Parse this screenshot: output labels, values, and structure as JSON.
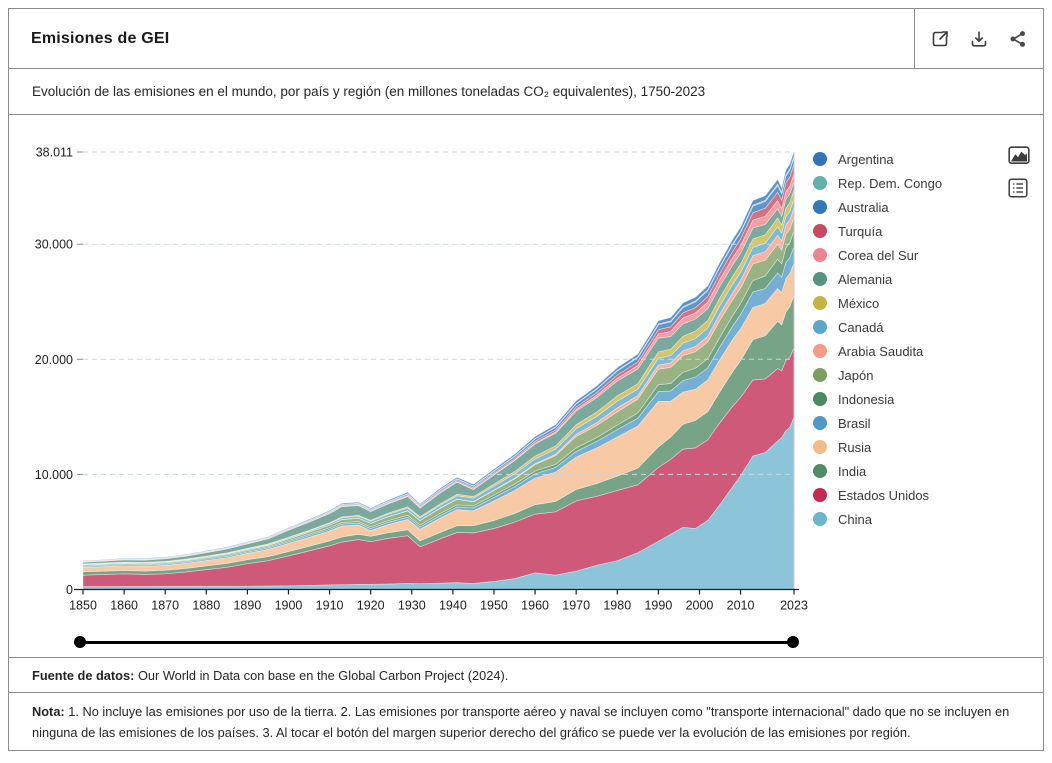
{
  "header": {
    "title": "Emisiones de GEI",
    "action_icons": [
      "external-link-icon",
      "download-icon",
      "share-icon"
    ]
  },
  "subtitle": "Evolución de las emisiones en el mundo, por país y región (en millones toneladas CO₂ equivalentes), 1750-2023",
  "controls": {
    "icons": [
      "area-chart-icon",
      "legend-list-icon"
    ]
  },
  "source": {
    "label": "Fuente de datos:",
    "text": " Our World in Data con base en the Global Carbon Project (2024)."
  },
  "note": {
    "label": "Nota:",
    "text": " 1. No incluye las emisiones por uso de la tierra. 2. Las emisiones por transporte aéreo y naval se incluyen como \"transporte internacional\" dado que no se incluyen en ninguna de las emisiones de los países. 3. Al tocar el botón del margen superior derecho del gráfico se puede ver la evolución de las emisiones por región."
  },
  "colors": {
    "grid": "#c8d6e3",
    "axis": "#202020",
    "plot_right_edge": "#c9c9c9",
    "border": "#8c8c8c"
  },
  "chart_data": {
    "type": "area",
    "stacked": true,
    "title": "Emisiones de GEI",
    "ylabel": "millones toneladas CO₂ equivalentes",
    "xlabel": "",
    "xlim": [
      1850,
      2023
    ],
    "ylim": [
      0,
      38011
    ],
    "grid": "dashed-horizontal",
    "legend_position": "right",
    "y_ticks": [
      {
        "v": 0,
        "label": "0"
      },
      {
        "v": 10000,
        "label": "10.000"
      },
      {
        "v": 20000,
        "label": "20.000"
      },
      {
        "v": 30000,
        "label": "30.000"
      },
      {
        "v": 38011,
        "label": "38.011"
      }
    ],
    "x_ticks": [
      {
        "v": 1850,
        "label": "1850"
      },
      {
        "v": 1860,
        "label": "1860"
      },
      {
        "v": 1870,
        "label": "1870"
      },
      {
        "v": 1880,
        "label": "1880"
      },
      {
        "v": 1890,
        "label": "1890"
      },
      {
        "v": 1900,
        "label": "1900"
      },
      {
        "v": 1910,
        "label": "1910"
      },
      {
        "v": 1920,
        "label": "1920"
      },
      {
        "v": 1930,
        "label": "1930"
      },
      {
        "v": 1940,
        "label": "1940"
      },
      {
        "v": 1950,
        "label": "1950"
      },
      {
        "v": 1960,
        "label": "1960"
      },
      {
        "v": 1970,
        "label": "1970"
      },
      {
        "v": 1980,
        "label": "1980"
      },
      {
        "v": 1990,
        "label": "1990"
      },
      {
        "v": 2000,
        "label": "2000"
      },
      {
        "v": 2010,
        "label": "2010"
      },
      {
        "v": 2023,
        "label": "2023"
      }
    ],
    "x": [
      1850,
      1855,
      1860,
      1865,
      1870,
      1875,
      1880,
      1885,
      1890,
      1895,
      1900,
      1905,
      1910,
      1913,
      1917,
      1920,
      1924,
      1929,
      1932,
      1937,
      1941,
      1945,
      1950,
      1955,
      1960,
      1965,
      1970,
      1975,
      1980,
      1985,
      1990,
      1993,
      1996,
      1999,
      2002,
      2005,
      2008,
      2010,
      2013,
      2016,
      2019,
      2020,
      2021,
      2022,
      2023
    ],
    "series": [
      {
        "name": "Argentina",
        "color": "#3272b6",
        "values": [
          40,
          41,
          43,
          45,
          47,
          49,
          52,
          55,
          59,
          63,
          70,
          76,
          84,
          88,
          92,
          96,
          102,
          110,
          112,
          120,
          126,
          132,
          145,
          158,
          172,
          188,
          210,
          225,
          245,
          255,
          280,
          295,
          315,
          330,
          330,
          350,
          370,
          380,
          390,
          400,
          410,
          390,
          410,
          415,
          420
        ]
      },
      {
        "name": "Rep. Dem. Congo",
        "color": "#63b1ae",
        "values": [
          20,
          20,
          21,
          21,
          22,
          22,
          23,
          23,
          24,
          25,
          26,
          27,
          28,
          29,
          30,
          31,
          32,
          34,
          35,
          37,
          38,
          40,
          42,
          45,
          48,
          52,
          56,
          60,
          65,
          70,
          75,
          78,
          82,
          86,
          90,
          95,
          100,
          104,
          110,
          116,
          122,
          124,
          126,
          128,
          130
        ]
      },
      {
        "name": "Australia",
        "color": "#3377bb",
        "values": [
          20,
          21,
          22,
          23,
          25,
          27,
          30,
          33,
          37,
          41,
          48,
          55,
          65,
          70,
          75,
          80,
          88,
          96,
          100,
          110,
          120,
          130,
          150,
          170,
          200,
          230,
          270,
          300,
          340,
          370,
          420,
          440,
          460,
          490,
          510,
          530,
          560,
          560,
          560,
          570,
          580,
          560,
          560,
          570,
          570
        ]
      },
      {
        "name": "Turquía",
        "color": "#c84a62",
        "values": [
          30,
          31,
          32,
          33,
          34,
          35,
          37,
          39,
          41,
          43,
          48,
          52,
          57,
          60,
          62,
          65,
          70,
          76,
          80,
          88,
          95,
          100,
          110,
          125,
          145,
          165,
          195,
          230,
          270,
          310,
          360,
          400,
          440,
          460,
          480,
          520,
          560,
          590,
          640,
          700,
          730,
          740,
          780,
          800,
          840
        ]
      },
      {
        "name": "Corea del Sur",
        "color": "#ee8490",
        "values": [
          20,
          20,
          21,
          21,
          22,
          22,
          23,
          24,
          25,
          26,
          28,
          30,
          33,
          35,
          37,
          40,
          44,
          48,
          50,
          55,
          60,
          55,
          60,
          70,
          90,
          110,
          150,
          200,
          250,
          300,
          380,
          440,
          520,
          540,
          580,
          600,
          620,
          660,
          700,
          710,
          700,
          660,
          680,
          680,
          690
        ]
      },
      {
        "name": "Alemania",
        "color": "#579181",
        "values": [
          150,
          165,
          185,
          205,
          230,
          260,
          300,
          340,
          390,
          440,
          600,
          700,
          800,
          900,
          850,
          750,
          800,
          900,
          750,
          950,
          1050,
          600,
          800,
          950,
          1050,
          1100,
          1200,
          1250,
          1300,
          1280,
          1200,
          1100,
          1080,
          1040,
          1020,
          1000,
          980,
          940,
          950,
          900,
          810,
          750,
          780,
          750,
          700
        ]
      },
      {
        "name": "México",
        "color": "#c7b345",
        "values": [
          30,
          31,
          32,
          33,
          35,
          37,
          39,
          42,
          45,
          48,
          55,
          62,
          70,
          75,
          80,
          85,
          95,
          105,
          100,
          115,
          125,
          140,
          170,
          200,
          240,
          280,
          330,
          380,
          450,
          480,
          540,
          560,
          600,
          640,
          650,
          680,
          710,
          700,
          720,
          740,
          760,
          700,
          730,
          760,
          790
        ]
      },
      {
        "name": "Canadá",
        "color": "#5ba6c9",
        "values": [
          30,
          32,
          34,
          36,
          40,
          44,
          50,
          56,
          64,
          72,
          85,
          100,
          130,
          150,
          170,
          180,
          200,
          230,
          220,
          250,
          280,
          300,
          350,
          380,
          420,
          450,
          500,
          540,
          580,
          560,
          600,
          620,
          660,
          700,
          720,
          740,
          730,
          720,
          730,
          730,
          740,
          700,
          720,
          740,
          760
        ]
      },
      {
        "name": "Arabia Saudita",
        "color": "#f59c87",
        "values": [
          5,
          5,
          5,
          5,
          6,
          6,
          6,
          7,
          7,
          8,
          8,
          9,
          10,
          10,
          11,
          12,
          14,
          16,
          18,
          20,
          25,
          30,
          40,
          60,
          80,
          120,
          180,
          250,
          350,
          300,
          350,
          400,
          420,
          450,
          500,
          550,
          600,
          650,
          700,
          750,
          780,
          780,
          800,
          830,
          850
        ]
      },
      {
        "name": "Japón",
        "color": "#7d9d62",
        "values": [
          60,
          62,
          64,
          66,
          70,
          75,
          82,
          90,
          100,
          115,
          150,
          180,
          220,
          250,
          280,
          300,
          330,
          380,
          380,
          450,
          480,
          350,
          400,
          450,
          550,
          750,
          1000,
          1050,
          1150,
          1200,
          1350,
          1400,
          1450,
          1430,
          1450,
          1450,
          1400,
          1350,
          1450,
          1350,
          1300,
          1200,
          1200,
          1150,
          1150
        ]
      },
      {
        "name": "Indonesia",
        "color": "#4a8b62",
        "values": [
          80,
          82,
          84,
          86,
          88,
          90,
          93,
          96,
          100,
          104,
          110,
          116,
          125,
          130,
          135,
          140,
          150,
          160,
          165,
          175,
          180,
          170,
          200,
          220,
          250,
          270,
          300,
          340,
          400,
          460,
          600,
          650,
          720,
          780,
          800,
          850,
          900,
          950,
          1000,
          1100,
          1200,
          1150,
          1250,
          1300,
          1400
        ]
      },
      {
        "name": "Brasil",
        "color": "#4f98c8",
        "values": [
          100,
          102,
          105,
          108,
          110,
          113,
          116,
          120,
          125,
          130,
          140,
          150,
          160,
          170,
          175,
          180,
          190,
          200,
          210,
          230,
          240,
          250,
          300,
          330,
          370,
          410,
          500,
          560,
          640,
          680,
          850,
          900,
          1000,
          1050,
          1050,
          1100,
          1150,
          1250,
          1350,
          1300,
          1350,
          1350,
          1400,
          1400,
          1400
        ]
      },
      {
        "name": "Rusia",
        "color": "#f5ba8a",
        "values": [
          380,
          390,
          400,
          410,
          420,
          440,
          470,
          500,
          550,
          620,
          700,
          780,
          850,
          950,
          800,
          500,
          700,
          900,
          1000,
          1250,
          1400,
          1300,
          1700,
          2000,
          2300,
          2550,
          2800,
          3100,
          3400,
          3650,
          3950,
          3100,
          2800,
          2700,
          2750,
          2800,
          2800,
          2750,
          2800,
          2800,
          2850,
          2800,
          2900,
          2850,
          2800
        ]
      },
      {
        "name": "India",
        "color": "#518b65",
        "values": [
          290,
          295,
          300,
          305,
          310,
          315,
          325,
          335,
          345,
          355,
          380,
          400,
          430,
          450,
          460,
          470,
          490,
          520,
          530,
          560,
          590,
          620,
          700,
          750,
          830,
          900,
          1000,
          1100,
          1250,
          1450,
          1800,
          1950,
          2150,
          2400,
          2450,
          2700,
          3000,
          3200,
          3500,
          3750,
          4100,
          4000,
          4200,
          4400,
          4600
        ]
      },
      {
        "name": "Estados Unidos",
        "color": "#c22a52",
        "values": [
          1000,
          1050,
          1100,
          1040,
          1100,
          1250,
          1450,
          1650,
          1950,
          2200,
          2600,
          3000,
          3400,
          3700,
          3900,
          3700,
          3950,
          4150,
          3200,
          3850,
          4350,
          4400,
          4600,
          4900,
          5100,
          5500,
          6100,
          6000,
          6100,
          5900,
          6400,
          6500,
          6800,
          7000,
          7000,
          7100,
          7000,
          6800,
          6600,
          6400,
          6300,
          5800,
          6100,
          6100,
          6000
        ]
      },
      {
        "name": "China",
        "color": "#6cb5cf",
        "values": [
          250,
          255,
          260,
          262,
          265,
          268,
          275,
          282,
          290,
          300,
          320,
          350,
          400,
          420,
          440,
          450,
          480,
          520,
          500,
          560,
          600,
          520,
          700,
          950,
          1450,
          1250,
          1600,
          2100,
          2500,
          3200,
          4200,
          4800,
          5400,
          5300,
          6000,
          7400,
          8900,
          9900,
          11600,
          11900,
          12900,
          13200,
          13800,
          14100,
          15000
        ]
      }
    ]
  }
}
